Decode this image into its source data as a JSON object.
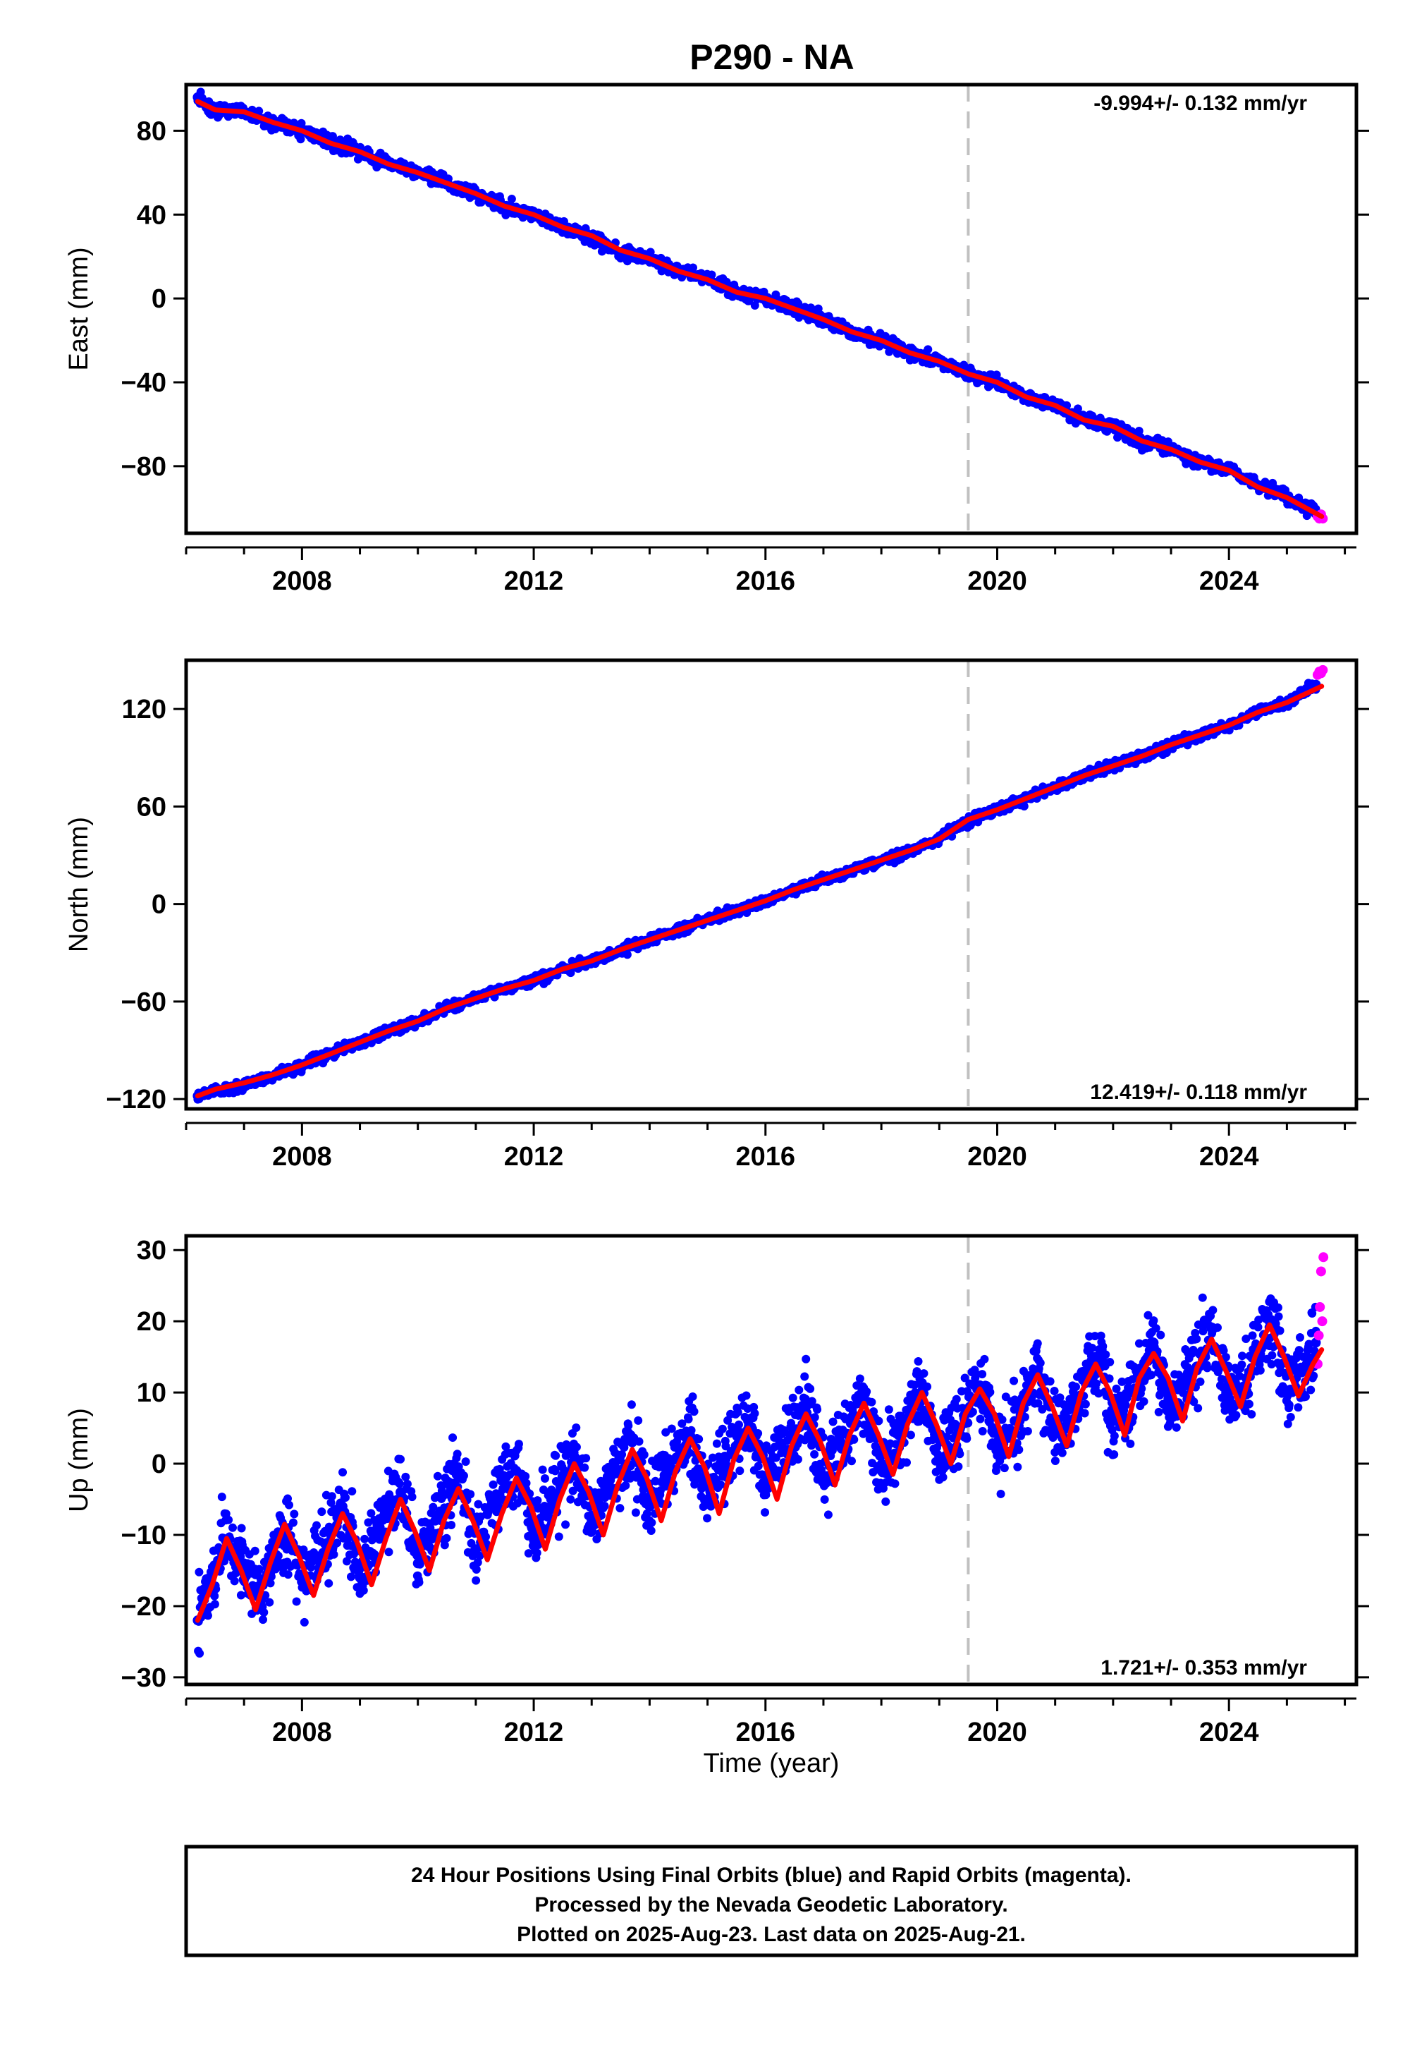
{
  "title": "P290 - NA",
  "xlabel": "Time (year)",
  "footer": {
    "line1": "24 Hour Positions Using Final Orbits (blue) and Rapid Orbits (magenta).",
    "line2": "Processed by the Nevada Geodetic Laboratory.",
    "line3": "Plotted on 2025-Aug-23. Last data on 2025-Aug-21."
  },
  "colors": {
    "final_orbits": "#0000ff",
    "rapid_orbits": "#ff00ff",
    "model": "#ff0000",
    "event_line": "#c0c0c0",
    "frame": "#000000"
  },
  "chart_data": [
    {
      "type": "scatter",
      "component": "east",
      "ylabel": "East (mm)",
      "rate_label": "-9.994+/- 0.132 mm/yr",
      "rate_position": "top-right",
      "xlim": [
        2006.0,
        2026.2
      ],
      "ylim": [
        -112,
        102
      ],
      "xticks": [
        2008,
        2012,
        2016,
        2020,
        2024
      ],
      "yticks": [
        80,
        40,
        0,
        -40,
        -80
      ],
      "ytick_labels": [
        "80",
        "40",
        "0",
        "−40",
        "−80"
      ],
      "event_line_x": 2019.5,
      "series": [
        {
          "role": "final",
          "x": [
            2006.2,
            2006.5,
            2007.0,
            2007.5,
            2008.0,
            2008.5,
            2009.0,
            2009.5,
            2010.0,
            2010.5,
            2011.0,
            2011.5,
            2012.0,
            2012.5,
            2013.0,
            2013.5,
            2014.0,
            2014.5,
            2015.0,
            2015.5,
            2016.0,
            2016.5,
            2017.0,
            2017.5,
            2018.0,
            2018.5,
            2019.0,
            2019.5,
            2020.0,
            2020.5,
            2021.0,
            2021.5,
            2022.0,
            2022.5,
            2023.0,
            2023.5,
            2024.0,
            2024.5,
            2025.0,
            2025.5
          ],
          "y": [
            96,
            89,
            89,
            84,
            80,
            74,
            70,
            64,
            61,
            55,
            50,
            44,
            40,
            34,
            29,
            22,
            19,
            13,
            9,
            3,
            0,
            -5,
            -10,
            -16,
            -20,
            -26,
            -30,
            -36,
            -40,
            -47,
            -51,
            -58,
            -61,
            -68,
            -72,
            -78,
            -82,
            -89,
            -95,
            -102
          ]
        },
        {
          "role": "rapid",
          "x": [
            2025.53,
            2025.56,
            2025.59,
            2025.62
          ],
          "y": [
            -104,
            -105,
            -103,
            -105
          ]
        },
        {
          "role": "model",
          "x": [
            2006.2,
            2006.5,
            2007.0,
            2007.5,
            2008.0,
            2008.5,
            2009.0,
            2009.5,
            2010.0,
            2010.5,
            2011.0,
            2011.5,
            2012.0,
            2012.5,
            2013.0,
            2013.5,
            2014.0,
            2014.5,
            2015.0,
            2015.5,
            2016.0,
            2016.5,
            2017.0,
            2017.5,
            2018.0,
            2018.5,
            2019.0,
            2019.5,
            2020.0,
            2020.5,
            2021.0,
            2021.5,
            2022.0,
            2022.5,
            2023.0,
            2023.5,
            2024.0,
            2024.5,
            2025.0,
            2025.6
          ],
          "y": [
            94,
            90,
            89,
            84,
            80,
            74,
            70,
            64,
            60,
            55,
            50,
            44,
            40,
            34,
            30,
            23,
            19,
            13,
            9,
            3,
            0,
            -5,
            -10,
            -16,
            -20,
            -26,
            -30,
            -36,
            -40,
            -47,
            -51,
            -58,
            -61,
            -68,
            -72,
            -78,
            -82,
            -90,
            -95,
            -104
          ]
        }
      ]
    },
    {
      "type": "scatter",
      "component": "north",
      "ylabel": "North (mm)",
      "rate_label": "12.419+/- 0.118 mm/yr",
      "rate_position": "bottom-right",
      "xlim": [
        2006.0,
        2026.2
      ],
      "ylim": [
        -126,
        150
      ],
      "xticks": [
        2008,
        2012,
        2016,
        2020,
        2024
      ],
      "yticks": [
        120,
        60,
        0,
        -60,
        -120
      ],
      "ytick_labels": [
        "120",
        "60",
        "0",
        "−60",
        "−120"
      ],
      "event_line_x": 2019.5,
      "series": [
        {
          "role": "final",
          "x": [
            2006.2,
            2006.5,
            2007.0,
            2007.5,
            2008.0,
            2008.5,
            2009.0,
            2009.5,
            2010.0,
            2010.5,
            2011.0,
            2011.5,
            2012.0,
            2012.5,
            2013.0,
            2013.5,
            2014.0,
            2014.5,
            2015.0,
            2015.5,
            2016.0,
            2016.5,
            2017.0,
            2017.5,
            2018.0,
            2018.5,
            2019.0,
            2019.5,
            2020.0,
            2020.5,
            2021.0,
            2021.5,
            2022.0,
            2022.5,
            2023.0,
            2023.5,
            2024.0,
            2024.5,
            2025.0,
            2025.5
          ],
          "y": [
            -118,
            -115,
            -111,
            -106,
            -99,
            -92,
            -85,
            -78,
            -72,
            -64,
            -58,
            -52,
            -47,
            -40,
            -35,
            -28,
            -22,
            -16,
            -10,
            -4,
            2,
            9,
            15,
            21,
            27,
            33,
            40,
            52,
            58,
            65,
            72,
            79,
            85,
            91,
            98,
            104,
            110,
            118,
            124,
            135
          ]
        },
        {
          "role": "rapid",
          "x": [
            2025.53,
            2025.56,
            2025.59,
            2025.62
          ],
          "y": [
            141,
            143,
            142,
            144
          ]
        },
        {
          "role": "model",
          "x": [
            2006.2,
            2006.5,
            2007.0,
            2007.5,
            2008.0,
            2008.5,
            2009.0,
            2009.5,
            2010.0,
            2010.5,
            2011.0,
            2011.5,
            2012.0,
            2012.5,
            2013.0,
            2013.5,
            2014.0,
            2014.5,
            2015.0,
            2015.5,
            2016.0,
            2016.5,
            2017.0,
            2017.5,
            2018.0,
            2018.5,
            2019.0,
            2019.5,
            2020.0,
            2020.5,
            2021.0,
            2021.5,
            2022.0,
            2022.5,
            2023.0,
            2023.5,
            2024.0,
            2024.5,
            2025.0,
            2025.6
          ],
          "y": [
            -118,
            -114,
            -110,
            -105,
            -99,
            -92,
            -85,
            -78,
            -72,
            -64,
            -58,
            -52,
            -47,
            -40,
            -35,
            -28,
            -22,
            -16,
            -10,
            -4,
            2,
            9,
            15,
            21,
            27,
            33,
            40,
            52,
            58,
            65,
            72,
            79,
            85,
            91,
            98,
            104,
            110,
            118,
            124,
            134
          ]
        }
      ]
    },
    {
      "type": "scatter",
      "component": "up",
      "ylabel": "Up (mm)",
      "rate_label": "1.721+/- 0.353 mm/yr",
      "rate_position": "bottom-right",
      "xlim": [
        2006.0,
        2026.2
      ],
      "ylim": [
        -31,
        32
      ],
      "xticks": [
        2008,
        2012,
        2016,
        2020,
        2024
      ],
      "yticks": [
        30,
        20,
        10,
        0,
        -10,
        -20,
        -30
      ],
      "ytick_labels": [
        "30",
        "20",
        "10",
        "0",
        "−10",
        "−20",
        "−30"
      ],
      "event_line_x": 2019.5,
      "seasonal_amplitude_mm": 6,
      "series": [
        {
          "role": "final",
          "x": [
            2006.2,
            2006.4,
            2006.7,
            2007.0,
            2007.3,
            2007.7,
            2008.0,
            2008.3,
            2008.7,
            2009.0,
            2009.3,
            2009.7,
            2010.0,
            2010.3,
            2010.7,
            2011.0,
            2011.3,
            2011.7,
            2012.0,
            2012.3,
            2012.7,
            2013.0,
            2013.3,
            2013.7,
            2014.0,
            2014.3,
            2014.7,
            2015.0,
            2015.3,
            2015.7,
            2016.0,
            2016.3,
            2016.7,
            2017.0,
            2017.3,
            2017.7,
            2018.0,
            2018.3,
            2018.7,
            2019.0,
            2019.3,
            2019.7,
            2020.0,
            2020.3,
            2020.7,
            2021.0,
            2021.3,
            2021.7,
            2022.0,
            2022.3,
            2022.7,
            2023.0,
            2023.3,
            2023.7,
            2024.0,
            2024.3,
            2024.7,
            2025.0,
            2025.3,
            2025.5
          ],
          "y": [
            -22,
            -18,
            -11,
            -14,
            -19,
            -9,
            -16,
            -13,
            -6,
            -16,
            -10,
            -4,
            -14,
            -8,
            -2,
            -12,
            -6,
            -1,
            -9,
            -5,
            1,
            -8,
            -3,
            3,
            -6,
            -1,
            4,
            -5,
            1,
            6,
            -3,
            2,
            8,
            -2,
            3,
            9,
            -1,
            4,
            10,
            1,
            4,
            11,
            2,
            6,
            13,
            5,
            8,
            15,
            6,
            10,
            17,
            8,
            12,
            19,
            9,
            12,
            20,
            10,
            13,
            17
          ]
        },
        {
          "role": "rapid",
          "x": [
            2025.53,
            2025.55,
            2025.57,
            2025.59,
            2025.61,
            2025.63
          ],
          "y": [
            14,
            18,
            22,
            27,
            20,
            29
          ]
        },
        {
          "role": "model",
          "x": [
            2006.2,
            2006.45,
            2006.7,
            2006.95,
            2007.2,
            2007.45,
            2007.7,
            2007.95,
            2008.2,
            2008.45,
            2008.7,
            2008.95,
            2009.2,
            2009.45,
            2009.7,
            2009.95,
            2010.2,
            2010.45,
            2010.7,
            2010.95,
            2011.2,
            2011.45,
            2011.7,
            2011.95,
            2012.2,
            2012.45,
            2012.7,
            2012.95,
            2013.2,
            2013.45,
            2013.7,
            2013.95,
            2014.2,
            2014.45,
            2014.7,
            2014.95,
            2015.2,
            2015.45,
            2015.7,
            2015.95,
            2016.2,
            2016.45,
            2016.7,
            2016.95,
            2017.2,
            2017.45,
            2017.7,
            2017.95,
            2018.2,
            2018.45,
            2018.7,
            2018.95,
            2019.2,
            2019.45,
            2019.7,
            2019.95,
            2020.2,
            2020.45,
            2020.7,
            2020.95,
            2021.2,
            2021.45,
            2021.7,
            2021.95,
            2022.2,
            2022.45,
            2022.7,
            2022.95,
            2023.2,
            2023.45,
            2023.7,
            2023.95,
            2024.2,
            2024.45,
            2024.7,
            2024.95,
            2025.2,
            2025.45,
            2025.6
          ],
          "y": [
            -22,
            -17,
            -10.5,
            -15,
            -20.5,
            -14,
            -8.5,
            -13,
            -18.5,
            -12,
            -7,
            -11,
            -17,
            -10.5,
            -5,
            -9.5,
            -15,
            -8,
            -3.5,
            -8,
            -13.5,
            -7,
            -2,
            -6,
            -12,
            -5,
            0,
            -4,
            -10,
            -3,
            2,
            -2,
            -8,
            -1,
            3.5,
            -0.5,
            -7,
            0.5,
            5,
            1,
            -5,
            2.5,
            7,
            3,
            -3,
            4,
            8.5,
            4,
            -1.5,
            5.5,
            10,
            5.5,
            0,
            7,
            10.5,
            7,
            1,
            8.5,
            12.5,
            8,
            2.5,
            10,
            14,
            10,
            4,
            12,
            15.5,
            12,
            6,
            13.5,
            17.5,
            13,
            8,
            15,
            19.5,
            15,
            9.5,
            14,
            16
          ]
        }
      ]
    }
  ]
}
